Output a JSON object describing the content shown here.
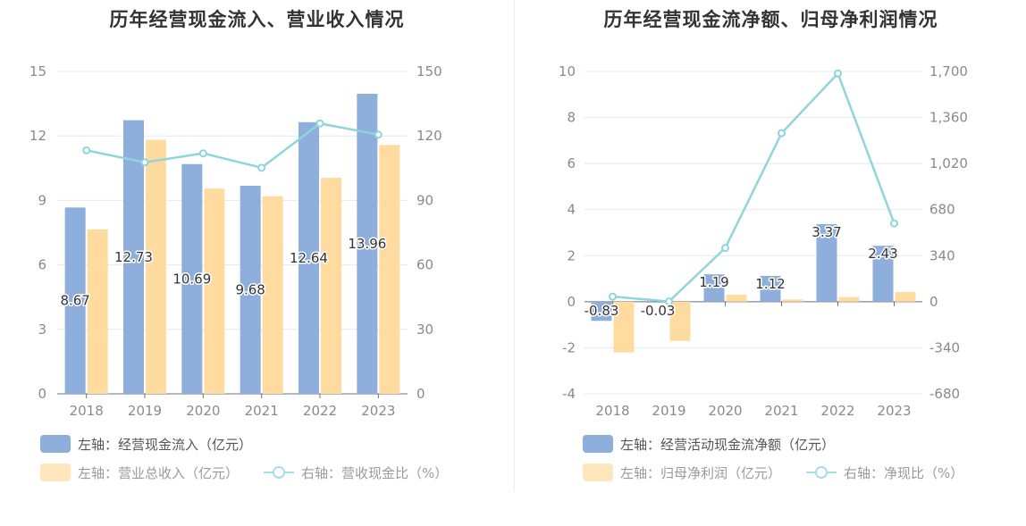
{
  "chart_data": [
    {
      "type": "bar",
      "title": "历年经营现金流入、营业收入情况",
      "categories": [
        "2018",
        "2019",
        "2020",
        "2021",
        "2022",
        "2023"
      ],
      "left_axis": {
        "ylim": [
          0,
          15
        ],
        "ticks": [
          "0",
          "3",
          "6",
          "9",
          "12",
          "15"
        ]
      },
      "right_axis": {
        "ylim": [
          0,
          150
        ],
        "ticks": [
          "0",
          "30",
          "60",
          "90",
          "120",
          "150"
        ]
      },
      "series": [
        {
          "name": "左轴：经营现金流入（亿元）",
          "type": "bar",
          "axis": "left",
          "color": "#8eaedc",
          "values": [
            8.67,
            12.73,
            10.69,
            9.68,
            12.64,
            13.96
          ],
          "labels": [
            "8.67",
            "12.73",
            "10.69",
            "9.68",
            "12.64",
            "13.96"
          ]
        },
        {
          "name": "左轴：营业总收入（亿元）",
          "type": "bar",
          "axis": "left",
          "color": "#ffdb9f",
          "values": [
            7.65,
            11.82,
            9.55,
            9.2,
            10.05,
            11.58
          ]
        },
        {
          "name": "右轴：营收现金比（%）",
          "type": "line",
          "axis": "right",
          "color": "#8fd5dc",
          "values": [
            113.3,
            107.7,
            111.9,
            105.2,
            125.8,
            120.6
          ]
        }
      ],
      "grid": true,
      "legend": "bottom-left"
    },
    {
      "type": "bar",
      "title": "历年经营现金流净额、归母净利润情况",
      "categories": [
        "2018",
        "2019",
        "2020",
        "2021",
        "2022",
        "2023"
      ],
      "left_axis": {
        "ylim": [
          -4,
          10
        ],
        "ticks": [
          "-4",
          "-2",
          "0",
          "2",
          "4",
          "6",
          "8",
          "10"
        ]
      },
      "right_axis": {
        "ylim": [
          -680,
          1700
        ],
        "ticks": [
          "-680",
          "-340",
          "0",
          "340",
          "680",
          "1,020",
          "1,360",
          "1,700"
        ]
      },
      "series": [
        {
          "name": "左轴：经营活动现金流净额（亿元）",
          "type": "bar",
          "axis": "left",
          "color": "#8eaedc",
          "values": [
            -0.83,
            -0.03,
            1.19,
            1.12,
            3.37,
            2.43
          ],
          "labels": [
            "-0.83",
            "-0.03",
            "1.19",
            "1.12",
            "3.37",
            "2.43"
          ]
        },
        {
          "name": "左轴：归母净利润（亿元）",
          "type": "bar",
          "axis": "left",
          "color": "#ffdb9f",
          "values": [
            -2.2,
            -1.7,
            0.3,
            0.1,
            0.2,
            0.42
          ]
        },
        {
          "name": "右轴：净现比（%）",
          "type": "line",
          "axis": "right",
          "color": "#8fd5dc",
          "values": [
            37.7,
            1.8,
            396.7,
            1244.0,
            1685.0,
            578.6
          ]
        }
      ],
      "grid": true,
      "legend": "bottom-left"
    }
  ]
}
